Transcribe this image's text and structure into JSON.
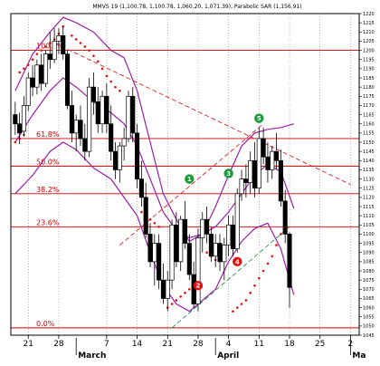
{
  "chart_data": {
    "type": "candlestick",
    "header": "MMVS 19 (1,100.78, 1,100.78, 1,060.20, 1,071.39), Parabolic SAR (1,156.91)",
    "x_ticks": [
      "21",
      "28",
      "7",
      "14",
      "21",
      "28",
      "4",
      "11",
      "18",
      "25",
      "2"
    ],
    "x_tick_days": [
      -11,
      -4,
      7,
      14,
      21,
      28,
      35,
      42,
      49,
      56,
      63
    ],
    "months": [
      {
        "label": "March",
        "day": 0
      },
      {
        "label": "April",
        "day": 32
      },
      {
        "label": "Ma",
        "day": 63
      }
    ],
    "ylim": [
      1045,
      1220
    ],
    "y_ticks": [
      1045,
      1050,
      1055,
      1060,
      1065,
      1070,
      1075,
      1080,
      1085,
      1090,
      1095,
      1100,
      1105,
      1110,
      1115,
      1120,
      1125,
      1130,
      1135,
      1140,
      1145,
      1150,
      1155,
      1160,
      1165,
      1170,
      1175,
      1180,
      1185,
      1190,
      1195,
      1200,
      1205,
      1210,
      1215,
      1220
    ],
    "xlim_days": [
      -15,
      65
    ],
    "candles": [
      {
        "d": -14,
        "o": 1165,
        "h": 1172,
        "l": 1154,
        "c": 1160
      },
      {
        "d": -13,
        "o": 1160,
        "h": 1166,
        "l": 1149,
        "c": 1155
      },
      {
        "d": -12,
        "o": 1156,
        "h": 1175,
        "l": 1153,
        "c": 1170
      },
      {
        "d": -11,
        "o": 1170,
        "h": 1188,
        "l": 1167,
        "c": 1185
      },
      {
        "d": -10,
        "o": 1185,
        "h": 1192,
        "l": 1175,
        "c": 1180
      },
      {
        "d": -9,
        "o": 1180,
        "h": 1195,
        "l": 1176,
        "c": 1192
      },
      {
        "d": -8,
        "o": 1192,
        "h": 1198,
        "l": 1178,
        "c": 1182
      },
      {
        "d": -7,
        "o": 1182,
        "h": 1200,
        "l": 1180,
        "c": 1198
      },
      {
        "d": -6,
        "o": 1198,
        "h": 1210,
        "l": 1190,
        "c": 1195
      },
      {
        "d": -5,
        "o": 1195,
        "h": 1212,
        "l": 1193,
        "c": 1205
      },
      {
        "d": -4,
        "o": 1205,
        "h": 1212,
        "l": 1198,
        "c": 1208
      },
      {
        "d": -3,
        "o": 1208,
        "h": 1213,
        "l": 1195,
        "c": 1198
      },
      {
        "d": -2,
        "o": 1198,
        "h": 1200,
        "l": 1168,
        "c": 1170
      },
      {
        "d": -1,
        "o": 1170,
        "h": 1178,
        "l": 1150,
        "c": 1155
      },
      {
        "d": 0,
        "o": 1155,
        "h": 1165,
        "l": 1145,
        "c": 1162
      },
      {
        "d": 1,
        "o": 1162,
        "h": 1170,
        "l": 1148,
        "c": 1152
      },
      {
        "d": 2,
        "o": 1152,
        "h": 1160,
        "l": 1140,
        "c": 1145
      },
      {
        "d": 3,
        "o": 1145,
        "h": 1185,
        "l": 1142,
        "c": 1180
      },
      {
        "d": 4,
        "o": 1180,
        "h": 1188,
        "l": 1165,
        "c": 1172
      },
      {
        "d": 5,
        "o": 1172,
        "h": 1180,
        "l": 1155,
        "c": 1160
      },
      {
        "d": 6,
        "o": 1160,
        "h": 1178,
        "l": 1155,
        "c": 1175
      },
      {
        "d": 7,
        "o": 1175,
        "h": 1182,
        "l": 1155,
        "c": 1160
      },
      {
        "d": 8,
        "o": 1160,
        "h": 1170,
        "l": 1140,
        "c": 1145
      },
      {
        "d": 9,
        "o": 1145,
        "h": 1150,
        "l": 1130,
        "c": 1135
      },
      {
        "d": 10,
        "o": 1135,
        "h": 1150,
        "l": 1128,
        "c": 1148
      },
      {
        "d": 11,
        "o": 1148,
        "h": 1158,
        "l": 1140,
        "c": 1152
      },
      {
        "d": 12,
        "o": 1152,
        "h": 1178,
        "l": 1150,
        "c": 1175
      },
      {
        "d": 13,
        "o": 1175,
        "h": 1180,
        "l": 1150,
        "c": 1155
      },
      {
        "d": 14,
        "o": 1155,
        "h": 1160,
        "l": 1125,
        "c": 1130
      },
      {
        "d": 15,
        "o": 1130,
        "h": 1140,
        "l": 1115,
        "c": 1120
      },
      {
        "d": 16,
        "o": 1120,
        "h": 1128,
        "l": 1098,
        "c": 1100
      },
      {
        "d": 17,
        "o": 1100,
        "h": 1106,
        "l": 1082,
        "c": 1085
      },
      {
        "d": 18,
        "o": 1085,
        "h": 1100,
        "l": 1072,
        "c": 1095
      },
      {
        "d": 19,
        "o": 1095,
        "h": 1100,
        "l": 1070,
        "c": 1075
      },
      {
        "d": 20,
        "o": 1075,
        "h": 1084,
        "l": 1062,
        "c": 1065
      },
      {
        "d": 21,
        "o": 1065,
        "h": 1080,
        "l": 1058,
        "c": 1075
      },
      {
        "d": 22,
        "o": 1075,
        "h": 1108,
        "l": 1070,
        "c": 1105
      },
      {
        "d": 23,
        "o": 1105,
        "h": 1112,
        "l": 1082,
        "c": 1085
      },
      {
        "d": 24,
        "o": 1085,
        "h": 1110,
        "l": 1080,
        "c": 1108
      },
      {
        "d": 25,
        "o": 1108,
        "h": 1118,
        "l": 1092,
        "c": 1095
      },
      {
        "d": 26,
        "o": 1095,
        "h": 1100,
        "l": 1075,
        "c": 1078
      },
      {
        "d": 27,
        "o": 1078,
        "h": 1085,
        "l": 1060,
        "c": 1062
      },
      {
        "d": 28,
        "o": 1062,
        "h": 1103,
        "l": 1058,
        "c": 1098
      },
      {
        "d": 29,
        "o": 1098,
        "h": 1112,
        "l": 1090,
        "c": 1108
      },
      {
        "d": 30,
        "o": 1108,
        "h": 1115,
        "l": 1095,
        "c": 1100
      },
      {
        "d": 31,
        "o": 1100,
        "h": 1104,
        "l": 1085,
        "c": 1088
      },
      {
        "d": 32,
        "o": 1088,
        "h": 1100,
        "l": 1082,
        "c": 1095
      },
      {
        "d": 33,
        "o": 1095,
        "h": 1100,
        "l": 1080,
        "c": 1085
      },
      {
        "d": 34,
        "o": 1085,
        "h": 1098,
        "l": 1075,
        "c": 1094
      },
      {
        "d": 35,
        "o": 1094,
        "h": 1110,
        "l": 1088,
        "c": 1105
      },
      {
        "d": 36,
        "o": 1105,
        "h": 1110,
        "l": 1088,
        "c": 1092
      },
      {
        "d": 37,
        "o": 1092,
        "h": 1125,
        "l": 1090,
        "c": 1122
      },
      {
        "d": 38,
        "o": 1122,
        "h": 1135,
        "l": 1118,
        "c": 1130
      },
      {
        "d": 39,
        "o": 1130,
        "h": 1138,
        "l": 1120,
        "c": 1128
      },
      {
        "d": 40,
        "o": 1128,
        "h": 1145,
        "l": 1122,
        "c": 1140
      },
      {
        "d": 41,
        "o": 1140,
        "h": 1150,
        "l": 1120,
        "c": 1125
      },
      {
        "d": 42,
        "o": 1125,
        "h": 1158,
        "l": 1122,
        "c": 1152
      },
      {
        "d": 43,
        "o": 1152,
        "h": 1158,
        "l": 1138,
        "c": 1142
      },
      {
        "d": 44,
        "o": 1142,
        "h": 1150,
        "l": 1128,
        "c": 1135
      },
      {
        "d": 45,
        "o": 1135,
        "h": 1148,
        "l": 1130,
        "c": 1145
      },
      {
        "d": 46,
        "o": 1145,
        "h": 1155,
        "l": 1135,
        "c": 1140
      },
      {
        "d": 47,
        "o": 1140,
        "h": 1146,
        "l": 1115,
        "c": 1118
      },
      {
        "d": 48,
        "o": 1118,
        "h": 1124,
        "l": 1095,
        "c": 1100
      },
      {
        "d": 49,
        "o": 1100,
        "h": 1101,
        "l": 1060,
        "c": 1071
      }
    ],
    "fib_levels": [
      {
        "label": "100.0%",
        "value": 1200
      },
      {
        "label": "61.8%",
        "value": 1152
      },
      {
        "label": "50.0%",
        "value": 1137
      },
      {
        "label": "38.2%",
        "value": 1122
      },
      {
        "label": "23.6%",
        "value": 1104
      },
      {
        "label": "0.0%",
        "value": 1049
      }
    ],
    "upper_band": [
      [
        -14,
        1178
      ],
      [
        -10,
        1198
      ],
      [
        -6,
        1210
      ],
      [
        -3,
        1218
      ],
      [
        0,
        1215
      ],
      [
        4,
        1210
      ],
      [
        8,
        1200
      ],
      [
        11,
        1196
      ],
      [
        14,
        1178
      ],
      [
        17,
        1150
      ],
      [
        20,
        1122
      ],
      [
        23,
        1108
      ],
      [
        26,
        1096
      ],
      [
        29,
        1100
      ],
      [
        32,
        1115
      ],
      [
        35,
        1132
      ],
      [
        38,
        1148
      ],
      [
        41,
        1155
      ],
      [
        44,
        1157
      ],
      [
        47,
        1158
      ],
      [
        50,
        1160
      ]
    ],
    "middle_band": [
      [
        -14,
        1150
      ],
      [
        -10,
        1165
      ],
      [
        -6,
        1178
      ],
      [
        -3,
        1185
      ],
      [
        0,
        1180
      ],
      [
        4,
        1172
      ],
      [
        8,
        1166
      ],
      [
        11,
        1160
      ],
      [
        14,
        1148
      ],
      [
        17,
        1130
      ],
      [
        20,
        1112
      ],
      [
        23,
        1102
      ],
      [
        26,
        1098
      ],
      [
        29,
        1100
      ],
      [
        32,
        1104
      ],
      [
        35,
        1112
      ],
      [
        38,
        1122
      ],
      [
        41,
        1132
      ],
      [
        44,
        1138
      ],
      [
        47,
        1134
      ],
      [
        50,
        1114
      ]
    ],
    "lower_band": [
      [
        -14,
        1122
      ],
      [
        -10,
        1132
      ],
      [
        -6,
        1145
      ],
      [
        -3,
        1150
      ],
      [
        0,
        1146
      ],
      [
        4,
        1136
      ],
      [
        8,
        1130
      ],
      [
        11,
        1120
      ],
      [
        14,
        1110
      ],
      [
        17,
        1090
      ],
      [
        20,
        1072
      ],
      [
        23,
        1062
      ],
      [
        26,
        1058
      ],
      [
        29,
        1064
      ],
      [
        32,
        1070
      ],
      [
        35,
        1085
      ],
      [
        38,
        1096
      ],
      [
        41,
        1103
      ],
      [
        44,
        1106
      ],
      [
        47,
        1092
      ],
      [
        50,
        1067
      ]
    ],
    "sar_points": [
      [
        -13,
        1188
      ],
      [
        -12,
        1190
      ],
      [
        -11,
        1192
      ],
      [
        -10,
        1195
      ],
      [
        -9,
        1198
      ],
      [
        -8,
        1200
      ],
      [
        -7,
        1202
      ],
      [
        -6,
        1204
      ],
      [
        -5,
        1206
      ],
      [
        -4,
        1209
      ],
      [
        -3,
        1213
      ],
      [
        -1,
        1208
      ],
      [
        0,
        1206
      ],
      [
        1,
        1204
      ],
      [
        2,
        1202
      ],
      [
        3,
        1200
      ],
      [
        4,
        1197
      ],
      [
        5,
        1194
      ],
      [
        6,
        1190
      ],
      [
        7,
        1186
      ],
      [
        8,
        1183
      ],
      [
        9,
        1180
      ],
      [
        10,
        1178
      ],
      [
        -14,
        1150
      ],
      [
        -13,
        1152
      ],
      [
        -12,
        1154
      ],
      [
        15,
        1112
      ],
      [
        16,
        1110
      ],
      [
        17,
        1108
      ],
      [
        18,
        1106
      ],
      [
        19,
        1104
      ],
      [
        21,
        1060
      ],
      [
        22,
        1062
      ],
      [
        23,
        1064
      ],
      [
        24,
        1066
      ],
      [
        25,
        1068
      ],
      [
        26,
        1070
      ],
      [
        30,
        1090
      ],
      [
        31,
        1088
      ],
      [
        32,
        1086
      ],
      [
        36,
        1058
      ],
      [
        37,
        1060
      ],
      [
        38,
        1062
      ],
      [
        39,
        1064
      ],
      [
        40,
        1068
      ],
      [
        41,
        1072
      ],
      [
        42,
        1076
      ],
      [
        43,
        1080
      ],
      [
        44,
        1084
      ],
      [
        45,
        1088
      ],
      [
        46,
        1094
      ],
      [
        47,
        1100
      ]
    ],
    "trendlines": [
      {
        "style": "dashed",
        "color": "red",
        "from": [
          -5,
          1204
        ],
        "to": [
          63,
          1127
        ]
      },
      {
        "style": "dashed",
        "color": "red",
        "from": [
          10,
          1094
        ],
        "to": [
          43,
          1160
        ]
      },
      {
        "style": "dashed",
        "color": "green",
        "from": [
          22,
          1049
        ],
        "to": [
          49,
          1104
        ]
      }
    ],
    "wave_markers": [
      {
        "label": "1",
        "d": 26,
        "v": 1130,
        "color": "#1a9b3c"
      },
      {
        "label": "2",
        "d": 28,
        "v": 1072,
        "color": "#e01010"
      },
      {
        "label": "3",
        "d": 35,
        "v": 1133,
        "color": "#1a9b3c"
      },
      {
        "label": "4",
        "d": 37,
        "v": 1085,
        "color": "#e01010"
      },
      {
        "label": "5",
        "d": 42,
        "v": 1163,
        "color": "#1a9b3c"
      }
    ],
    "colors": {
      "band": "#9a20a8",
      "fib": "#cc0000",
      "sar": "#e01010",
      "candle_down": "#000000",
      "candle_up": "#ffffff"
    }
  }
}
